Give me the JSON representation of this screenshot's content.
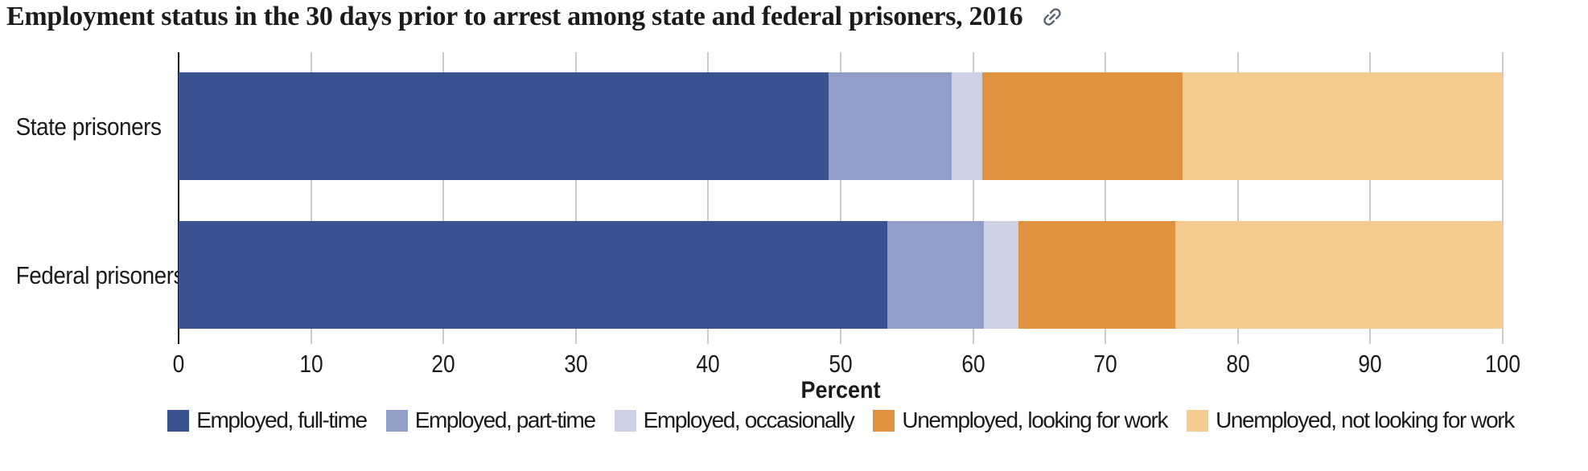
{
  "header": {
    "title": "Employment status in the 30 days prior to arrest among state and federal prisoners, 2016"
  },
  "colors": {
    "text": "#1b1b1b",
    "gridline": "#cbcbcb",
    "axis": "#111111",
    "link_icon": "#5a6370"
  },
  "chart_data": {
    "type": "bar",
    "orientation": "horizontal",
    "stacked": true,
    "title": "Employment status in the 30 days prior to arrest among state and federal prisoners, 2016",
    "categories": [
      "State prisoners",
      "Federal prisoners"
    ],
    "series": [
      {
        "name": "Employed, full-time",
        "color": "#3A5390",
        "values": [
          49.1,
          53.5
        ]
      },
      {
        "name": "Employed, part-time",
        "color": "#919EC7",
        "values": [
          9.3,
          7.3
        ]
      },
      {
        "name": "Employed, occasionally",
        "color": "#CDD1E4",
        "values": [
          2.3,
          2.6
        ]
      },
      {
        "name": "Unemployed, looking for work",
        "color": "#E0923F",
        "values": [
          15.1,
          11.9
        ]
      },
      {
        "name": "Unemployed, not looking for work",
        "color": "#F4CA8E",
        "values": [
          24.2,
          24.7
        ]
      }
    ],
    "xlabel": "Percent",
    "xlim": [
      0,
      100
    ],
    "xticks": [
      0,
      10,
      20,
      30,
      40,
      50,
      60,
      70,
      80,
      90,
      100
    ],
    "grid": true,
    "legend_position": "bottom"
  }
}
